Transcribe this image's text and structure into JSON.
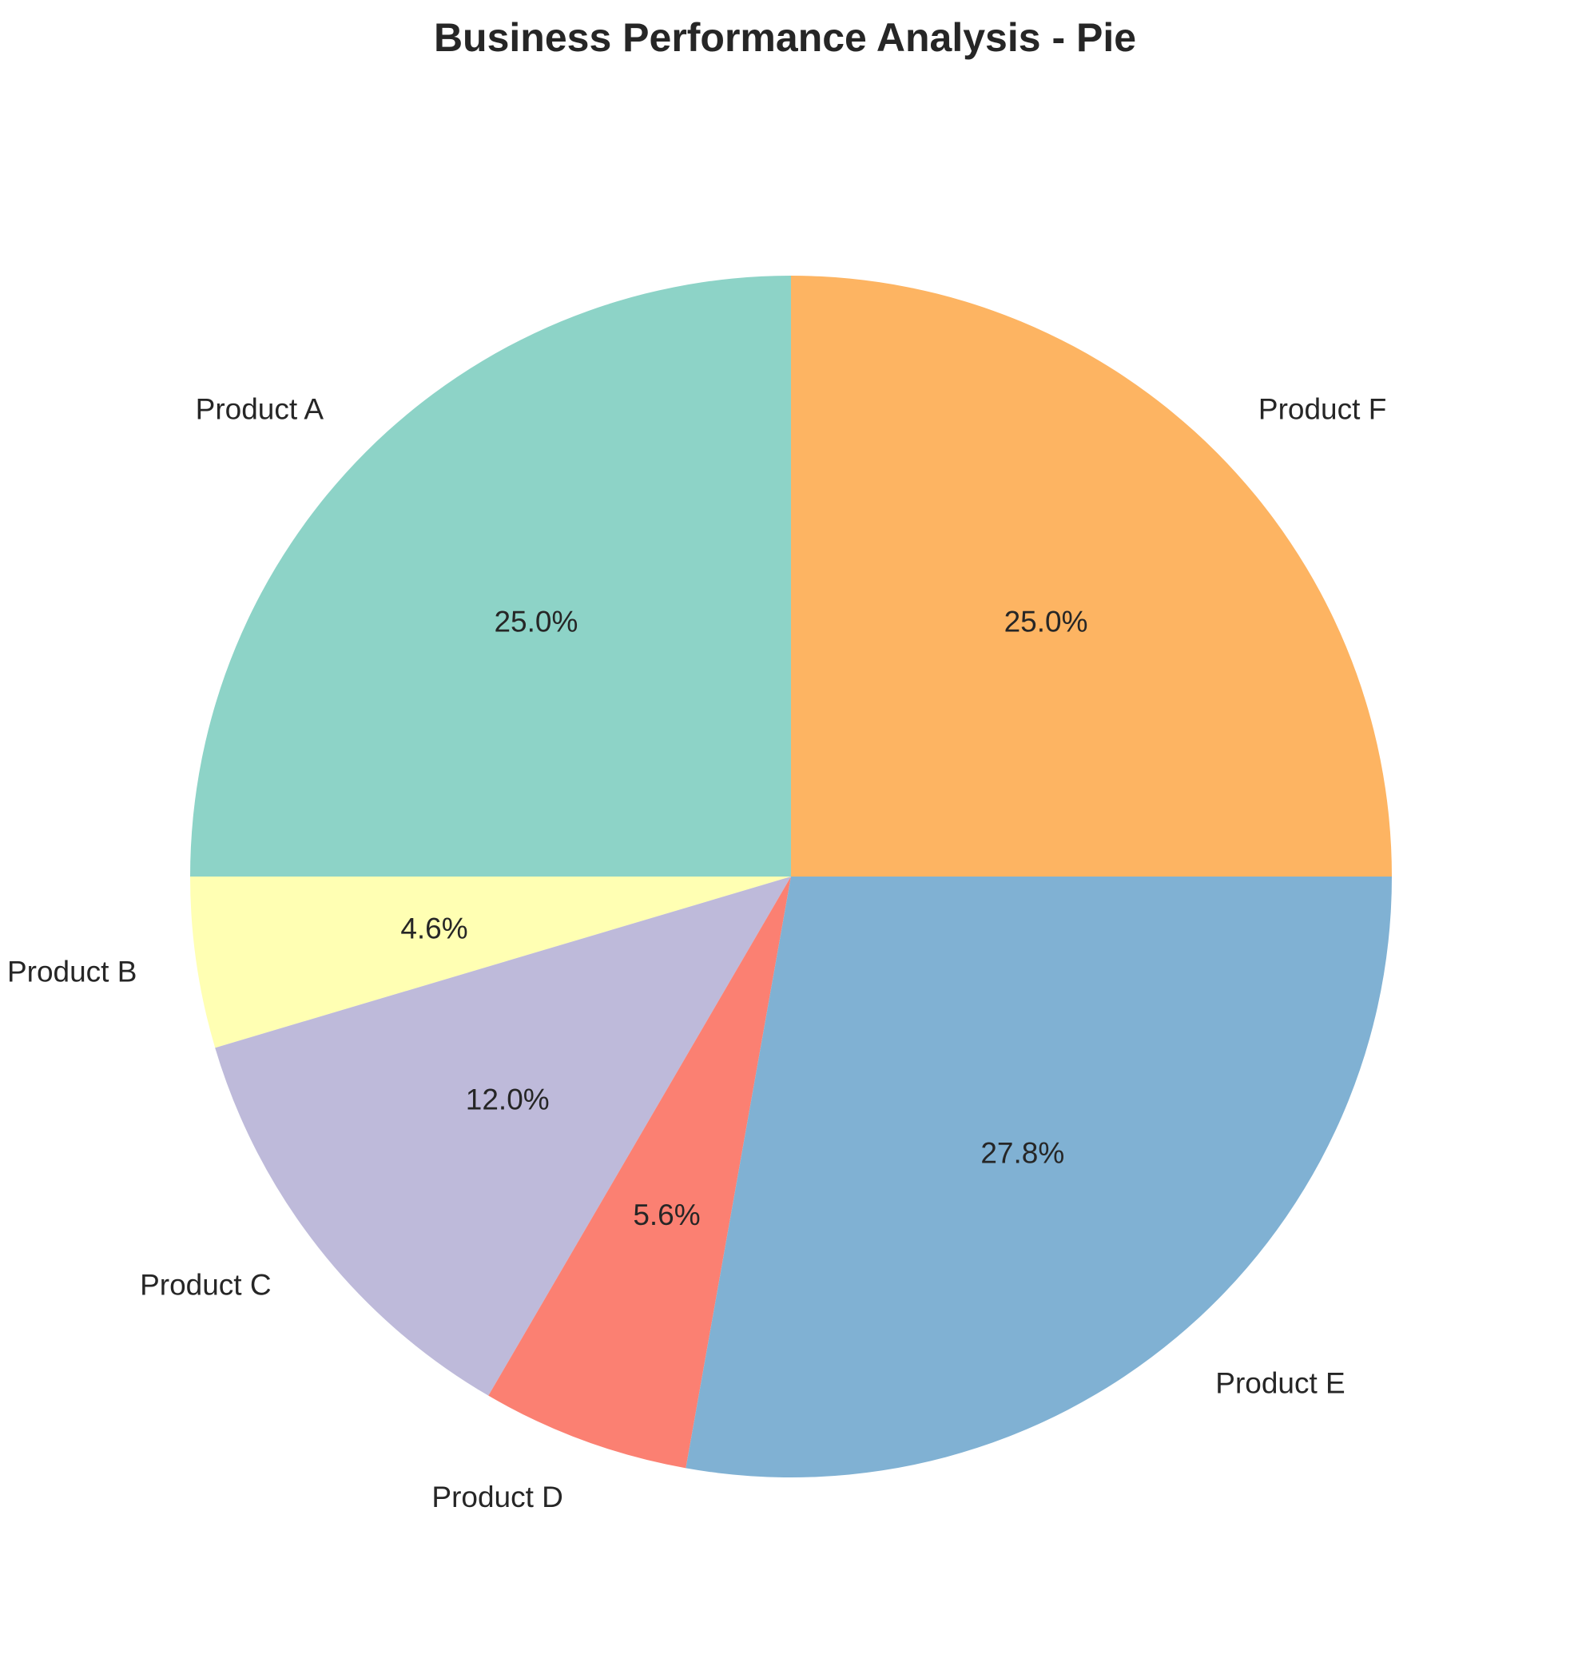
{
  "chart_data": {
    "type": "pie",
    "title": "Business Performance Analysis - Pie",
    "categories": [
      "Product A",
      "Product B",
      "Product C",
      "Product D",
      "Product E",
      "Product F"
    ],
    "values": [
      25.0,
      4.6,
      12.0,
      5.6,
      27.8,
      25.0
    ],
    "value_labels": [
      "25.0%",
      "4.6%",
      "12.0%",
      "5.6%",
      "27.8%",
      "25.0%"
    ],
    "colors": [
      "#8dd3c7",
      "#ffffb3",
      "#bebada",
      "#fb8072",
      "#80b1d3",
      "#fdb462"
    ],
    "start_angle_deg": 90,
    "direction": "counterclockwise"
  }
}
